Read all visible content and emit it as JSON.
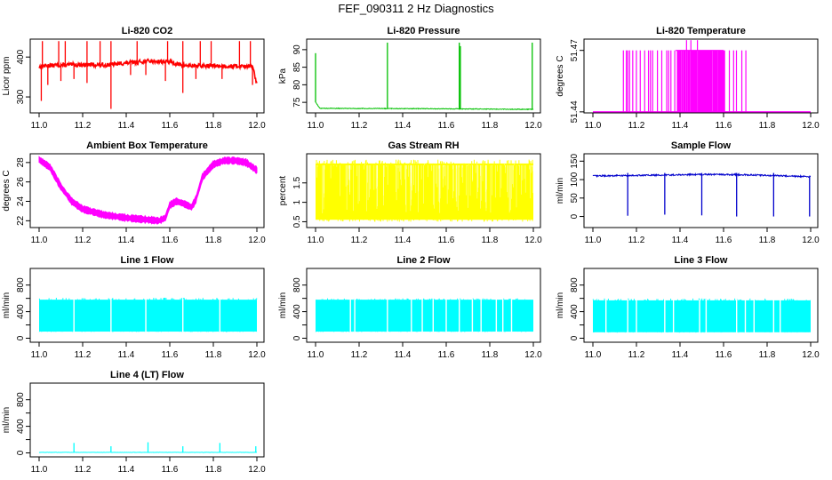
{
  "figure": {
    "title": "FEF_090311  2 Hz Diagnostics"
  },
  "chart_data": [
    {
      "id": "co2",
      "type": "line",
      "title": "Li-820 CO2",
      "ylabel": "Licor ppm",
      "color": "#ff0000",
      "xlim": [
        11.0,
        12.0
      ],
      "xticks": [
        "11.0",
        "11.2",
        "11.4",
        "11.6",
        "11.8",
        "12.0"
      ],
      "ylim": [
        260,
        445
      ],
      "yticks": [
        300,
        400
      ],
      "series": [
        {
          "name": "CO2",
          "pattern": "noisy",
          "x": [
            11.0,
            11.02,
            11.1,
            11.2,
            11.3,
            11.4,
            11.5,
            11.6,
            11.65,
            11.7,
            11.8,
            11.9,
            11.98,
            12.0
          ],
          "y": [
            375,
            378,
            380,
            381,
            380,
            385,
            390,
            388,
            380,
            378,
            378,
            377,
            378,
            330
          ],
          "noise": 5,
          "spikes_up": [
            [
              11.015,
              440
            ],
            [
              11.09,
              440
            ],
            [
              11.12,
              440
            ],
            [
              11.22,
              440
            ],
            [
              11.28,
              440
            ],
            [
              11.33,
              440
            ],
            [
              11.45,
              440
            ],
            [
              11.59,
              440
            ],
            [
              11.66,
              440
            ],
            [
              11.74,
              440
            ],
            [
              11.79,
              440
            ],
            [
              11.92,
              440
            ],
            [
              11.97,
              440
            ]
          ],
          "spikes_down": [
            [
              11.01,
              290
            ],
            [
              11.04,
              330
            ],
            [
              11.1,
              340
            ],
            [
              11.16,
              345
            ],
            [
              11.22,
              335
            ],
            [
              11.33,
              270
            ],
            [
              11.42,
              355
            ],
            [
              11.49,
              355
            ],
            [
              11.58,
              340
            ],
            [
              11.66,
              310
            ],
            [
              11.72,
              345
            ],
            [
              11.84,
              345
            ],
            [
              11.98,
              330
            ]
          ]
        }
      ]
    },
    {
      "id": "pressure",
      "type": "line",
      "title": "Li-820 Pressure",
      "ylabel": "kPa",
      "color": "#00c000",
      "xlim": [
        11.0,
        12.0
      ],
      "xticks": [
        "11.0",
        "11.2",
        "11.4",
        "11.6",
        "11.8",
        "12.0"
      ],
      "ylim": [
        72,
        93
      ],
      "yticks": [
        75,
        80,
        85,
        90
      ],
      "series": [
        {
          "name": "Pressure",
          "pattern": "flat",
          "x": [
            11.0,
            11.02,
            11.5,
            12.0
          ],
          "y": [
            75,
            73.3,
            73.2,
            73.0
          ],
          "noise": 0.1,
          "spikes_up": [
            [
              11.0,
              89
            ],
            [
              11.33,
              92
            ],
            [
              11.66,
              92
            ],
            [
              11.665,
              91
            ],
            [
              11.995,
              92
            ]
          ],
          "spikes_down": []
        }
      ]
    },
    {
      "id": "temp820",
      "type": "line",
      "title": "Li-820 Temperature",
      "ylabel": "degrees C",
      "color": "#ff00ff",
      "xlim": [
        11.0,
        12.0
      ],
      "xticks": [
        "11.0",
        "11.2",
        "11.4",
        "11.6",
        "11.8",
        "12.0"
      ],
      "ylim": [
        51.4395,
        51.4755
      ],
      "yticks": [
        51.44,
        51.47
      ],
      "ytick_labels": [
        "51.44",
        "51.47"
      ],
      "series": [
        {
          "name": "Temperature",
          "pattern": "digital",
          "base": 51.44,
          "high": 51.47,
          "peak": 51.475,
          "x_range": [
            11.14,
            11.72
          ],
          "dense_range": [
            11.38,
            11.6
          ],
          "peak_x": [
            11.43,
            11.45,
            11.48
          ]
        }
      ]
    },
    {
      "id": "ambient",
      "type": "line",
      "title": "Ambient Box Temperature",
      "ylabel": "degrees C",
      "color": "#ff00ff",
      "xlim": [
        11.0,
        12.0
      ],
      "xticks": [
        "11.0",
        "11.2",
        "11.4",
        "11.6",
        "11.8",
        "12.0"
      ],
      "ylim": [
        21.3,
        28.9
      ],
      "yticks": [
        22,
        24,
        26,
        28
      ],
      "series": [
        {
          "name": "Ambient",
          "pattern": "band",
          "band": 0.6,
          "x": [
            11.0,
            11.05,
            11.1,
            11.15,
            11.2,
            11.3,
            11.4,
            11.5,
            11.55,
            11.58,
            11.6,
            11.63,
            11.66,
            11.7,
            11.72,
            11.75,
            11.8,
            11.85,
            11.9,
            11.95,
            12.0
          ],
          "y": [
            28.3,
            27.5,
            25.5,
            24.0,
            23.2,
            22.6,
            22.3,
            22.1,
            22.0,
            22.3,
            23.6,
            24.0,
            23.8,
            23.4,
            24.2,
            26.5,
            27.8,
            28.2,
            28.2,
            28.0,
            27.2
          ]
        }
      ]
    },
    {
      "id": "rh",
      "type": "line",
      "title": "Gas Stream RH",
      "ylabel": "percent",
      "color": "#ffff00",
      "xlim": [
        11.0,
        12.0
      ],
      "xticks": [
        "11.0",
        "11.2",
        "11.4",
        "11.6",
        "11.8",
        "12.0"
      ],
      "ylim": [
        0.35,
        2.25
      ],
      "yticks": [
        0.5,
        1.0,
        1.5
      ],
      "ytick_labels": [
        "0.5",
        "1",
        "1.5"
      ],
      "series": [
        {
          "name": "RH",
          "pattern": "fill",
          "low": 0.55,
          "high": 2.0,
          "low_min": 0.5,
          "high_max": 2.1
        }
      ]
    },
    {
      "id": "sample",
      "type": "line",
      "title": "Sample Flow",
      "ylabel": "ml/min",
      "color": "#0000cc",
      "xlim": [
        11.0,
        12.0
      ],
      "xticks": [
        "11.0",
        "11.2",
        "11.4",
        "11.6",
        "11.8",
        "12.0"
      ],
      "ylim": [
        -30,
        170
      ],
      "yticks": [
        0,
        50,
        100,
        150
      ],
      "series": [
        {
          "name": "Sample",
          "pattern": "flat",
          "x": [
            11.0,
            11.3,
            11.5,
            11.7,
            12.0
          ],
          "y": [
            110,
            112,
            114,
            113,
            108
          ],
          "noise": 2,
          "spikes_up": [
            [
              11.16,
              118
            ],
            [
              11.33,
              118
            ],
            [
              11.5,
              118
            ],
            [
              11.66,
              118
            ],
            [
              11.83,
              118
            ]
          ],
          "spikes_down": [
            [
              11.16,
              2
            ],
            [
              11.33,
              5
            ],
            [
              11.5,
              3
            ],
            [
              11.66,
              0
            ],
            [
              11.83,
              0
            ],
            [
              11.995,
              0
            ]
          ]
        }
      ]
    },
    {
      "id": "line1",
      "type": "line",
      "title": "Line 1 Flow",
      "ylabel": "ml/min",
      "color": "#00ffff",
      "xlim": [
        11.0,
        12.0
      ],
      "xticks": [
        "11.0",
        "11.2",
        "11.4",
        "11.6",
        "11.8",
        "12.0"
      ],
      "ylim": [
        -60,
        1050
      ],
      "yticks": [
        0,
        200,
        400,
        600,
        800
      ],
      "ytick_labels": [
        "0",
        "",
        "400",
        "",
        "800"
      ],
      "series": [
        {
          "name": "Line 1",
          "pattern": "fill",
          "low": 100,
          "high": 580,
          "low_min": 95,
          "high_max": 610,
          "gaps": [
            11.16,
            11.33,
            11.49,
            11.66,
            11.83
          ]
        }
      ]
    },
    {
      "id": "line2",
      "type": "line",
      "title": "Line 2 Flow",
      "ylabel": "ml/min",
      "color": "#00ffff",
      "xlim": [
        11.0,
        12.0
      ],
      "xticks": [
        "11.0",
        "11.2",
        "11.4",
        "11.6",
        "11.8",
        "12.0"
      ],
      "ylim": [
        -60,
        1050
      ],
      "yticks": [
        0,
        200,
        400,
        600,
        800
      ],
      "ytick_labels": [
        "0",
        "",
        "400",
        "",
        "800"
      ],
      "series": [
        {
          "name": "Line 2",
          "pattern": "fill",
          "low": 100,
          "high": 580,
          "low_min": 95,
          "high_max": 600,
          "gaps": [
            11.16,
            11.18,
            11.33,
            11.44,
            11.49,
            11.54,
            11.6,
            11.66,
            11.72,
            11.76,
            11.83,
            11.86,
            11.9
          ]
        }
      ]
    },
    {
      "id": "line3",
      "type": "line",
      "title": "Line 3 Flow",
      "ylabel": "ml/min",
      "color": "#00ffff",
      "xlim": [
        11.0,
        12.0
      ],
      "xticks": [
        "11.0",
        "11.2",
        "11.4",
        "11.6",
        "11.8",
        "12.0"
      ],
      "ylim": [
        -60,
        1050
      ],
      "yticks": [
        0,
        200,
        400,
        600,
        800
      ],
      "ytick_labels": [
        "0",
        "",
        "400",
        "",
        "800"
      ],
      "series": [
        {
          "name": "Line 3",
          "pattern": "fill",
          "low": 90,
          "high": 570,
          "low_min": 85,
          "high_max": 600,
          "gaps": [
            11.06,
            11.16,
            11.2,
            11.33,
            11.37,
            11.49,
            11.52,
            11.66,
            11.7,
            11.74,
            11.83,
            11.86
          ]
        }
      ]
    },
    {
      "id": "line4",
      "type": "line",
      "title": "Line 4 (LT) Flow",
      "ylabel": "ml/min",
      "color": "#00ffff",
      "xlim": [
        11.0,
        12.0
      ],
      "xticks": [
        "11.0",
        "11.2",
        "11.4",
        "11.6",
        "11.8",
        "12.0"
      ],
      "ylim": [
        -60,
        1050
      ],
      "yticks": [
        0,
        200,
        400,
        600,
        800
      ],
      "ytick_labels": [
        "0",
        "",
        "400",
        "",
        "800"
      ],
      "series": [
        {
          "name": "Line 4",
          "pattern": "flat",
          "x": [
            11.0,
            12.0
          ],
          "y": [
            8,
            8
          ],
          "noise": 2,
          "spikes_up": [
            [
              11.16,
              150
            ],
            [
              11.33,
              100
            ],
            [
              11.5,
              160
            ],
            [
              11.66,
              100
            ],
            [
              11.83,
              150
            ],
            [
              11.995,
              100
            ]
          ],
          "spikes_down": []
        }
      ]
    }
  ]
}
